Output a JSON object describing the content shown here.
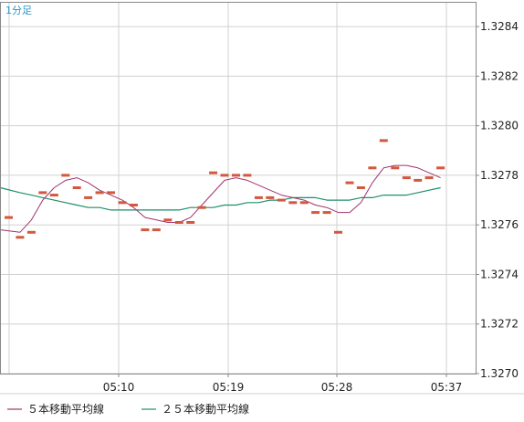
{
  "timeframe_label": "1分足",
  "chart_data": {
    "type": "line",
    "title": "",
    "xlabel": "",
    "ylabel": "",
    "ylim": [
      1.327,
      1.3285
    ],
    "y_ticks": [
      "1.3270",
      "1.3272",
      "1.3274",
      "1.3276",
      "1.3278",
      "1.3280",
      "1.3282",
      "1.3284"
    ],
    "x_ticks": [
      "05:10",
      "05:19",
      "05:28",
      "05:37"
    ],
    "grid": true,
    "legend_position": "bottom-left",
    "candles": [
      1.32763,
      1.32755,
      1.32757,
      1.32773,
      1.32772,
      1.3278,
      1.32775,
      1.32771,
      1.32773,
      1.32773,
      1.32769,
      1.32768,
      1.32758,
      1.32758,
      1.32762,
      1.32761,
      1.32761,
      1.32767,
      1.32781,
      1.3278,
      1.3278,
      1.3278,
      1.32771,
      1.32771,
      1.3277,
      1.32769,
      1.32769,
      1.32765,
      1.32765,
      1.32757,
      1.32777,
      1.32775,
      1.32783,
      1.32794,
      1.32783,
      1.32779,
      1.32778,
      1.32779,
      1.32783
    ],
    "series": [
      {
        "name": "５本移動平均線",
        "color": "#a0336d",
        "values": [
          1.32758,
          1.32757,
          1.32762,
          1.3277,
          1.32775,
          1.32778,
          1.32779,
          1.32777,
          1.32774,
          1.32772,
          1.3277,
          1.32767,
          1.32763,
          1.32762,
          1.32761,
          1.32761,
          1.32763,
          1.32768,
          1.32773,
          1.32778,
          1.32779,
          1.32778,
          1.32776,
          1.32774,
          1.32772,
          1.32771,
          1.3277,
          1.32768,
          1.32767,
          1.32765,
          1.32765,
          1.32769,
          1.32777,
          1.32783,
          1.32784,
          1.32784,
          1.32783,
          1.32781,
          1.32779
        ]
      },
      {
        "name": "２５本移動平均線",
        "color": "#1e8f6a",
        "values": [
          1.32775,
          1.32773,
          1.32772,
          1.32771,
          1.3277,
          1.32769,
          1.32768,
          1.32767,
          1.32767,
          1.32766,
          1.32766,
          1.32766,
          1.32766,
          1.32766,
          1.32766,
          1.32766,
          1.32767,
          1.32767,
          1.32767,
          1.32768,
          1.32768,
          1.32769,
          1.32769,
          1.3277,
          1.3277,
          1.32771,
          1.32771,
          1.32771,
          1.3277,
          1.3277,
          1.3277,
          1.32771,
          1.32771,
          1.32772,
          1.32772,
          1.32772,
          1.32773,
          1.32774,
          1.32775
        ]
      }
    ],
    "colors": {
      "candle": "#d2583f",
      "grid": "#d0d0d0",
      "axis": "#888888"
    }
  }
}
